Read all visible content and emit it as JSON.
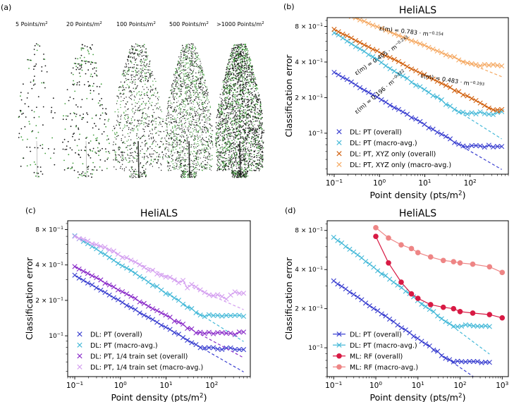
{
  "panel_labels": {
    "a": "(a)",
    "b": "(b)",
    "c": "(c)",
    "d": "(d)"
  },
  "density_labels": [
    {
      "prefix": "5 Points/m",
      "sup": "2"
    },
    {
      "prefix": "20 Points/m",
      "sup": "2"
    },
    {
      "prefix": "100 Points/m",
      "sup": "2"
    },
    {
      "prefix": "500 Points/m",
      "sup": "2"
    },
    {
      "prefix": ">1000  Points/m",
      "sup": "2"
    }
  ],
  "colors": {
    "blue": "#3a3fd0",
    "lightblue": "#45b9d8",
    "orange": "#d1610f",
    "lightorange": "#f5a861",
    "purple": "#8a2bc9",
    "violet": "#d49ff0",
    "crimson": "#d81a44",
    "salmon": "#ee8585",
    "tree_dark": "#141414",
    "tree_green": "#3f9d3a"
  },
  "chart_data": [
    {
      "id": "b",
      "type": "scatter",
      "title": "HeliALS",
      "xlabel": "Point density (pts/m",
      "xlabel_sup": "2",
      "xlabel_end": ")",
      "ylabel": "Classification error",
      "xscale": "log",
      "yscale": "log",
      "xlim": [
        0.07,
        700
      ],
      "ylim": [
        0.045,
        0.95
      ],
      "xticks": [
        {
          "v": 0.1,
          "b": "10",
          "e": "−1"
        },
        {
          "v": 1,
          "b": "10",
          "e": "0"
        },
        {
          "v": 10,
          "b": "10",
          "e": "1"
        },
        {
          "v": 100,
          "b": "10",
          "e": "2"
        }
      ],
      "yticks": [
        {
          "v": 0.1,
          "m": "",
          "b": "10",
          "e": "−1"
        },
        {
          "v": 0.2,
          "m": "2 × ",
          "b": "10",
          "e": "−1"
        },
        {
          "v": 0.4,
          "m": "4 × ",
          "b": "10",
          "e": "−1"
        },
        {
          "v": 0.8,
          "m": "8 × ",
          "b": "10",
          "e": "−1"
        }
      ],
      "x_range": [
        0.1,
        500
      ],
      "series": [
        {
          "name": "DL: PT (overall)",
          "color_key": "blue",
          "marker": "x",
          "fit_a": 0.196,
          "fit_b": -0.222,
          "floor": 0.078,
          "noise": 0.018
        },
        {
          "name": "DL: PT (macro-avg.)",
          "color_key": "lightblue",
          "marker": "x",
          "fit_a": 0.405,
          "fit_b": -0.243,
          "floor": 0.148,
          "noise": 0.022
        },
        {
          "name": "DL: PT, XYZ only (overall)",
          "color_key": "orange",
          "marker": "x",
          "fit_a": 0.483,
          "fit_b": -0.193,
          "floor": 0.158,
          "noise": 0.012
        },
        {
          "name": "DL: PT, XYZ only (macro-avg.)",
          "color_key": "lightorange",
          "marker": "x",
          "fit_a": 0.783,
          "fit_b": -0.154,
          "floor": 0.375,
          "noise": 0.015
        }
      ],
      "annotations": [
        {
          "text": "ε(m) = 0.783 · m",
          "exp": "−0.154",
          "near_x": 5,
          "rot": 8
        },
        {
          "text": "ε(m) = 0.483 · m",
          "exp": "−0.193",
          "near_x": 40,
          "rot": 11
        },
        {
          "text": "ε(m) = 0.405 · m",
          "exp": "−0.243",
          "near_x": 1.2,
          "rot": -40
        },
        {
          "text": "ε(m) = 0.196 · m",
          "exp": "−0.222",
          "near_x": 1.1,
          "rot": -47
        }
      ],
      "legend_position": "lower-left"
    },
    {
      "id": "c",
      "type": "scatter",
      "title": "HeliALS",
      "xlabel": "Point density (pts/m",
      "xlabel_sup": "2",
      "xlabel_end": ")",
      "ylabel": "Classification error",
      "xscale": "log",
      "yscale": "log",
      "xlim": [
        0.07,
        700
      ],
      "ylim": [
        0.045,
        0.95
      ],
      "xticks": [
        {
          "v": 0.1,
          "b": "10",
          "e": "−1"
        },
        {
          "v": 1,
          "b": "10",
          "e": "0"
        },
        {
          "v": 10,
          "b": "10",
          "e": "1"
        },
        {
          "v": 100,
          "b": "10",
          "e": "2"
        }
      ],
      "yticks": [
        {
          "v": 0.1,
          "m": "",
          "b": "10",
          "e": "−1"
        },
        {
          "v": 0.2,
          "m": "2 × ",
          "b": "10",
          "e": "−1"
        },
        {
          "v": 0.4,
          "m": "4 × ",
          "b": "10",
          "e": "−1"
        },
        {
          "v": 0.8,
          "m": "8 × ",
          "b": "10",
          "e": "−1"
        }
      ],
      "x_range": [
        0.1,
        500
      ],
      "series": [
        {
          "name": "DL: PT (overall)",
          "color_key": "blue",
          "marker": "x",
          "fit_a": 0.196,
          "fit_b": -0.222,
          "floor": 0.078,
          "noise": 0.015
        },
        {
          "name": "DL: PT (macro-avg.)",
          "color_key": "lightblue",
          "marker": "x",
          "fit_a": 0.405,
          "fit_b": -0.243,
          "floor": 0.148,
          "noise": 0.02
        },
        {
          "name": "DL: PT, 1/4 train set (overall)",
          "color_key": "purple",
          "marker": "x",
          "fit_a": 0.24,
          "fit_b": -0.21,
          "floor": 0.105,
          "noise": 0.02
        },
        {
          "name": "DL: PT, 1/4 train set (macro-avg.)",
          "color_key": "violet",
          "marker": "x",
          "fit_a": 0.48,
          "fit_b": -0.17,
          "floor": 0.22,
          "noise": 0.06
        }
      ],
      "legend_position": "lower-left"
    },
    {
      "id": "d",
      "type": "line",
      "title": "HeliALS",
      "xlabel": "Point density (pts/m",
      "xlabel_sup": "2",
      "xlabel_end": ")",
      "ylabel": "Classification error",
      "xscale": "log",
      "yscale": "log",
      "xlim": [
        0.07,
        1400
      ],
      "ylim": [
        0.06,
        0.95
      ],
      "xticks": [
        {
          "v": 0.1,
          "b": "10",
          "e": "−1"
        },
        {
          "v": 1,
          "b": "10",
          "e": "0"
        },
        {
          "v": 10,
          "b": "10",
          "e": "1"
        },
        {
          "v": 100,
          "b": "10",
          "e": "2"
        },
        {
          "v": 1000,
          "b": "10",
          "e": "3"
        }
      ],
      "yticks": [
        {
          "v": 0.1,
          "m": "",
          "b": "10",
          "e": "−1"
        },
        {
          "v": 0.2,
          "m": "2 × ",
          "b": "10",
          "e": "−1"
        },
        {
          "v": 0.4,
          "m": "4 × ",
          "b": "10",
          "e": "−1"
        },
        {
          "v": 0.8,
          "m": "8 × ",
          "b": "10",
          "e": "−1"
        }
      ],
      "x_range": [
        0.1,
        500
      ],
      "series": [
        {
          "name": "DL: PT (overall)",
          "color_key": "blue",
          "marker": "x",
          "fit_a": 0.196,
          "fit_b": -0.222,
          "floor": 0.078,
          "noise": 0.015
        },
        {
          "name": "DL: PT (macro-avg.)",
          "color_key": "lightblue",
          "marker": "x",
          "fit_a": 0.405,
          "fit_b": -0.243,
          "floor": 0.148,
          "noise": 0.02
        },
        {
          "name": "ML: RF (overall)",
          "color_key": "crimson",
          "marker": "o",
          "x": [
            1,
            2,
            4,
            7,
            10,
            20,
            40,
            70,
            100,
            200,
            500,
            1000
          ],
          "y": [
            0.72,
            0.45,
            0.32,
            0.26,
            0.24,
            0.215,
            0.205,
            0.2,
            0.19,
            0.185,
            0.18,
            0.17
          ]
        },
        {
          "name": "ML: RF (macro-avg.)",
          "color_key": "salmon",
          "marker": "o",
          "x": [
            1,
            2,
            4,
            7,
            10,
            20,
            40,
            70,
            100,
            200,
            500,
            1000
          ],
          "y": [
            0.84,
            0.7,
            0.62,
            0.58,
            0.54,
            0.5,
            0.47,
            0.46,
            0.45,
            0.44,
            0.42,
            0.38
          ]
        }
      ],
      "legend_position": "lower-left"
    }
  ]
}
